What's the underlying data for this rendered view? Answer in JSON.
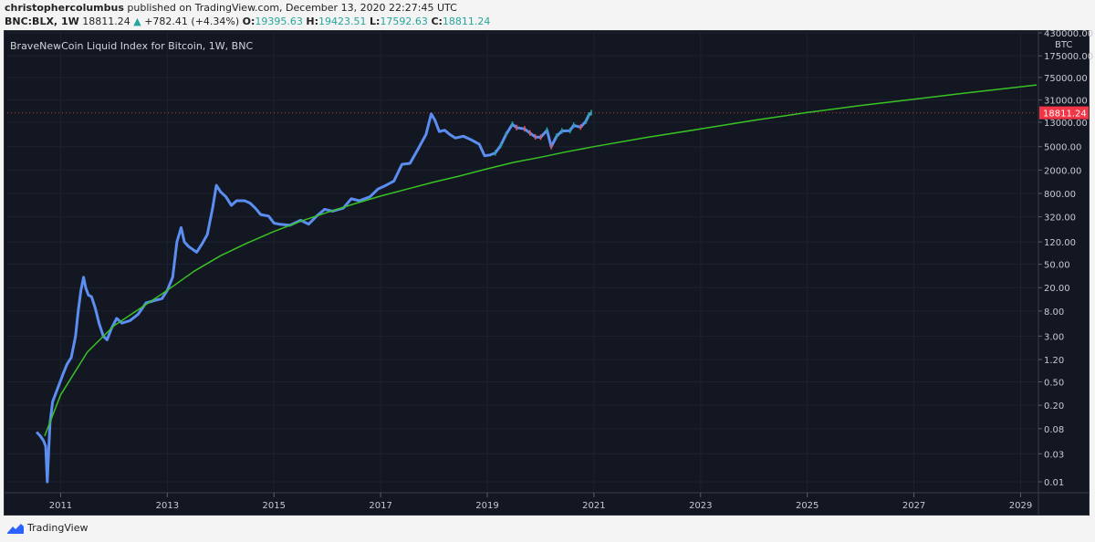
{
  "header": {
    "author": "christophercolumbus",
    "published": "published on TradingView.com, December 13, 2020 22:27:45 UTC"
  },
  "ticker": {
    "symbol": "BNC:BLX, 1W",
    "last": "18811.24",
    "change": "+782.41 (+4.34%)",
    "o_label": "O:",
    "open": "19395.63",
    "h_label": "H:",
    "high": "19423.51",
    "l_label": "L:",
    "low": "17592.63",
    "c_label": "C:",
    "close": "18811.24"
  },
  "chart_title": "BraveNewCoin Liquid Index for Bitcoin, 1W, BNC",
  "footer": {
    "brand": "TradingView"
  },
  "colors": {
    "bg": "#131722",
    "price": "#5b8ef0",
    "curve": "#39c224",
    "up": "#26a69a",
    "down": "#ef5350",
    "price_badge": "#f23645"
  },
  "chart_data": {
    "type": "line",
    "title": "BraveNewCoin Liquid Index for Bitcoin, 1W, BNC",
    "y_scale": "log",
    "currency_label": "BTC",
    "ylim": [
      0.007,
      430000
    ],
    "xlim": [
      2010.0,
      2029.3
    ],
    "y_ticks": [
      {
        "v": 430000,
        "label": "430000.00"
      },
      {
        "v": 175000,
        "label": "175000.00"
      },
      {
        "v": 75000,
        "label": "75000.00"
      },
      {
        "v": 31000,
        "label": "31000.00"
      },
      {
        "v": 13000,
        "label": "13000.00"
      },
      {
        "v": 5000,
        "label": "5000.00"
      },
      {
        "v": 2000,
        "label": "2000.00"
      },
      {
        "v": 800,
        "label": "800.00"
      },
      {
        "v": 320,
        "label": "320.00"
      },
      {
        "v": 120,
        "label": "120.00"
      },
      {
        "v": 50,
        "label": "50.00"
      },
      {
        "v": 20,
        "label": "20.00"
      },
      {
        "v": 8,
        "label": "8.00"
      },
      {
        "v": 3,
        "label": "3.00"
      },
      {
        "v": 1.2,
        "label": "1.20"
      },
      {
        "v": 0.5,
        "label": "0.50"
      },
      {
        "v": 0.2,
        "label": "0.20"
      },
      {
        "v": 0.08,
        "label": "0.08"
      },
      {
        "v": 0.03,
        "label": "0.03"
      },
      {
        "v": 0.01,
        "label": "0.01"
      }
    ],
    "x_ticks": [
      {
        "v": 2011,
        "label": "2011"
      },
      {
        "v": 2013,
        "label": "2013"
      },
      {
        "v": 2015,
        "label": "2015"
      },
      {
        "v": 2017,
        "label": "2017"
      },
      {
        "v": 2019,
        "label": "2019"
      },
      {
        "v": 2021,
        "label": "2021"
      },
      {
        "v": 2023,
        "label": "2023"
      },
      {
        "v": 2025,
        "label": "2025"
      },
      {
        "v": 2027,
        "label": "2027"
      },
      {
        "v": 2029,
        "label": "2029"
      }
    ],
    "last_price": {
      "v": 18811.24,
      "label": "18811.24"
    },
    "series": [
      {
        "values": [
          [
            2010.55,
            0.07
          ],
          [
            2010.62,
            0.06
          ],
          [
            2010.68,
            0.05
          ],
          [
            2010.72,
            0.04
          ],
          [
            2010.75,
            0.01
          ],
          [
            2010.8,
            0.1
          ],
          [
            2010.85,
            0.23
          ],
          [
            2010.95,
            0.4
          ],
          [
            2011.05,
            0.7
          ],
          [
            2011.12,
            1.0
          ],
          [
            2011.2,
            1.3
          ],
          [
            2011.28,
            3.0
          ],
          [
            2011.33,
            8.0
          ],
          [
            2011.38,
            18.0
          ],
          [
            2011.43,
            30.0
          ],
          [
            2011.47,
            20.0
          ],
          [
            2011.52,
            15.0
          ],
          [
            2011.58,
            14.0
          ],
          [
            2011.65,
            9.0
          ],
          [
            2011.72,
            5.0
          ],
          [
            2011.8,
            3.0
          ],
          [
            2011.87,
            2.6
          ],
          [
            2011.95,
            4.0
          ],
          [
            2012.05,
            6.0
          ],
          [
            2012.15,
            5.0
          ],
          [
            2012.3,
            5.5
          ],
          [
            2012.45,
            7.0
          ],
          [
            2012.6,
            11.0
          ],
          [
            2012.75,
            12.0
          ],
          [
            2012.9,
            13.0
          ],
          [
            2013.0,
            18.0
          ],
          [
            2013.1,
            30.0
          ],
          [
            2013.18,
            120.0
          ],
          [
            2013.26,
            210.0
          ],
          [
            2013.32,
            120.0
          ],
          [
            2013.4,
            100.0
          ],
          [
            2013.55,
            80.0
          ],
          [
            2013.65,
            110.0
          ],
          [
            2013.75,
            160.0
          ],
          [
            2013.85,
            450.0
          ],
          [
            2013.92,
            1100.0
          ],
          [
            2014.0,
            850.0
          ],
          [
            2014.1,
            700.0
          ],
          [
            2014.2,
            500.0
          ],
          [
            2014.3,
            600.0
          ],
          [
            2014.45,
            600.0
          ],
          [
            2014.55,
            550.0
          ],
          [
            2014.65,
            450.0
          ],
          [
            2014.75,
            350.0
          ],
          [
            2014.9,
            330.0
          ],
          [
            2015.0,
            250.0
          ],
          [
            2015.1,
            240.0
          ],
          [
            2015.3,
            230.0
          ],
          [
            2015.5,
            280.0
          ],
          [
            2015.65,
            240.0
          ],
          [
            2015.8,
            330.0
          ],
          [
            2015.95,
            430.0
          ],
          [
            2016.1,
            400.0
          ],
          [
            2016.3,
            450.0
          ],
          [
            2016.45,
            650.0
          ],
          [
            2016.6,
            600.0
          ],
          [
            2016.8,
            700.0
          ],
          [
            2016.95,
            950.0
          ],
          [
            2017.1,
            1100.0
          ],
          [
            2017.25,
            1300.0
          ],
          [
            2017.4,
            2500.0
          ],
          [
            2017.55,
            2600.0
          ],
          [
            2017.7,
            4500.0
          ],
          [
            2017.85,
            8000.0
          ],
          [
            2017.95,
            18000.0
          ],
          [
            2018.02,
            14000.0
          ],
          [
            2018.1,
            9000.0
          ],
          [
            2018.2,
            9500.0
          ],
          [
            2018.3,
            8000.0
          ],
          [
            2018.4,
            7000.0
          ],
          [
            2018.55,
            7500.0
          ],
          [
            2018.7,
            6500.0
          ],
          [
            2018.85,
            5500.0
          ],
          [
            2018.95,
            3500.0
          ],
          [
            2019.05,
            3600.0
          ],
          [
            2019.15,
            3900.0
          ],
          [
            2019.25,
            5200.0
          ],
          [
            2019.35,
            8000.0
          ],
          [
            2019.47,
            12000.0
          ],
          [
            2019.55,
            10500.0
          ],
          [
            2019.7,
            10000.0
          ],
          [
            2019.8,
            8500.0
          ],
          [
            2019.9,
            7300.0
          ],
          [
            2020.0,
            7200.0
          ],
          [
            2020.12,
            9500.0
          ],
          [
            2020.2,
            5000.0
          ],
          [
            2020.3,
            7500.0
          ],
          [
            2020.4,
            9200.0
          ],
          [
            2020.55,
            9300.0
          ],
          [
            2020.62,
            11500.0
          ],
          [
            2020.75,
            10700.0
          ],
          [
            2020.85,
            13500.0
          ],
          [
            2020.9,
            17000.0
          ],
          [
            2020.95,
            18811.24
          ]
        ]
      },
      {
        "values": [
          [
            2010.7,
            0.06
          ],
          [
            2011.0,
            0.3
          ],
          [
            2011.5,
            1.6
          ],
          [
            2012.0,
            4.5
          ],
          [
            2012.5,
            9.0
          ],
          [
            2013.0,
            18.0
          ],
          [
            2013.5,
            38.0
          ],
          [
            2014.0,
            70.0
          ],
          [
            2014.5,
            115.0
          ],
          [
            2015.0,
            180.0
          ],
          [
            2015.5,
            270.0
          ],
          [
            2016.0,
            380.0
          ],
          [
            2016.5,
            530.0
          ],
          [
            2017.0,
            720.0
          ],
          [
            2017.5,
            950.0
          ],
          [
            2018.0,
            1250.0
          ],
          [
            2018.5,
            1600.0
          ],
          [
            2019.0,
            2100.0
          ],
          [
            2019.5,
            2700.0
          ],
          [
            2020.0,
            3300.0
          ],
          [
            2020.5,
            4100.0
          ],
          [
            2021.0,
            5000.0
          ],
          [
            2022.0,
            7200.0
          ],
          [
            2023.0,
            10000.0
          ],
          [
            2024.0,
            14000.0
          ],
          [
            2025.0,
            19000.0
          ],
          [
            2026.0,
            25000.0
          ],
          [
            2027.0,
            32000.0
          ],
          [
            2028.0,
            41000.0
          ],
          [
            2029.0,
            52000.0
          ],
          [
            2029.3,
            56000.0
          ]
        ]
      }
    ]
  }
}
